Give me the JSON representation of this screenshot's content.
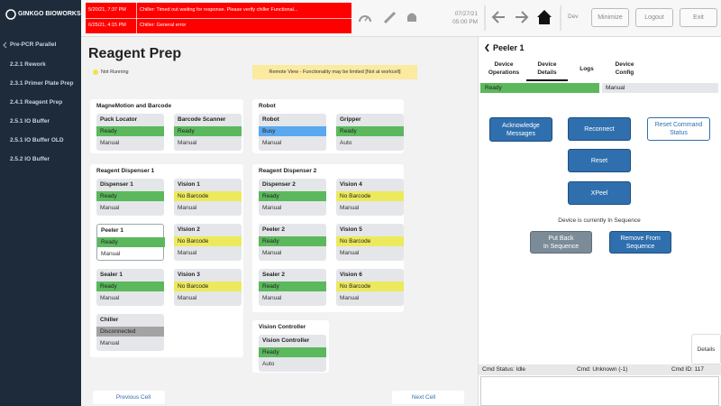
{
  "sidebar": {
    "logo": "GINKGO BIOWORKS",
    "back": "Pre-PCR Parallel",
    "items": [
      "2.2.1 Rework",
      "2.3.1 Primer Plate Prep",
      "2.4.1 Reagent Prep",
      "2.5.1 IO Buffer",
      "2.5.1 IO Buffer OLD",
      "2.5.2 IO Buffer"
    ]
  },
  "alarms": [
    {
      "time": "5/20/21, 7:37 PM",
      "message": "Chiller: Timed out waiting for response. Please verify chiller Functional..."
    },
    {
      "time": "6/25/21, 4:15 PM",
      "message": "Chiller: General error"
    }
  ],
  "clock": {
    "date": "07/27/21",
    "time": "05:00 PM"
  },
  "header": {
    "env": "Dev",
    "buttons": [
      "Minimize",
      "Logout",
      "Exit"
    ]
  },
  "page": {
    "title": "Reagent Prep",
    "legend": "Not Running",
    "legend_color": "#f0e24a",
    "banner": "Remote View - Functionality may be limited [Not at workcell]",
    "prev": "Previous Cell",
    "next": "Next Cell"
  },
  "panels": [
    {
      "title": "MagneMotion and Barcode",
      "cards": [
        {
          "name": "Puck Locator",
          "status": "Ready",
          "color": "#5cb85c",
          "mode": "Manual"
        },
        {
          "name": "Barcode Scanner",
          "status": "Ready",
          "color": "#5cb85c",
          "mode": "Manual"
        }
      ]
    },
    {
      "title": "Robot",
      "cards": [
        {
          "name": "Robot",
          "status": "Busy",
          "color": "#5aa8ee",
          "mode": "Manual"
        },
        {
          "name": "Gripper",
          "status": "Ready",
          "color": "#5cb85c",
          "mode": "Auto"
        }
      ]
    },
    {
      "title": "Reagent Dispenser 1",
      "cards": [
        {
          "name": "Dispenser 1",
          "status": "Ready",
          "color": "#5cb85c",
          "mode": "Manual"
        },
        {
          "name": "Vision 1",
          "status": "No Barcode",
          "color": "#ecea5c",
          "mode": "Manual"
        },
        {
          "name": "Peeler 1",
          "status": "Ready",
          "color": "#5cb85c",
          "mode": "Manual",
          "selected": true
        },
        {
          "name": "Vision 2",
          "status": "No Barcode",
          "color": "#ecea5c",
          "mode": "Manual"
        },
        {
          "name": "Sealer 1",
          "status": "Ready",
          "color": "#5cb85c",
          "mode": "Manual"
        },
        {
          "name": "Vision 3",
          "status": "No Barcode",
          "color": "#ecea5c",
          "mode": "Manual"
        },
        {
          "name": "Chiller",
          "status": "Disconnected",
          "color": "#a3a3a3",
          "mode": "Manual"
        }
      ]
    },
    {
      "title": "Reagent Dispenser 2",
      "cards": [
        {
          "name": "Dispenser 2",
          "status": "Ready",
          "color": "#5cb85c",
          "mode": "Manual"
        },
        {
          "name": "Vision 4",
          "status": "No Barcode",
          "color": "#ecea5c",
          "mode": "Manual"
        },
        {
          "name": "Peeler 2",
          "status": "Ready",
          "color": "#5cb85c",
          "mode": "Manual"
        },
        {
          "name": "Vision 5",
          "status": "No Barcode",
          "color": "#ecea5c",
          "mode": "Manual"
        },
        {
          "name": "Sealer 2",
          "status": "Ready",
          "color": "#5cb85c",
          "mode": "Manual"
        },
        {
          "name": "Vision 6",
          "status": "No Barcode",
          "color": "#ecea5c",
          "mode": "Manual"
        }
      ]
    },
    {
      "title": "Vision Controller",
      "cards": [
        {
          "name": "Vision Controller",
          "status": "Ready",
          "color": "#5cb85c",
          "mode": "Auto"
        }
      ]
    }
  ],
  "detail": {
    "title": "Peeler 1",
    "tabs": [
      {
        "lines": [
          "Device",
          "Operations"
        ]
      },
      {
        "lines": [
          "Device",
          "Details"
        ],
        "active": true
      },
      {
        "lines": [
          "Logs"
        ]
      },
      {
        "lines": [
          "Device",
          "Config"
        ]
      }
    ],
    "status": "Ready",
    "status_color": "#5cb85c",
    "mode": "Manual",
    "buttons": {
      "acknowledge": [
        "Acknowledge",
        "Messages"
      ],
      "reconnect": [
        "Reconnect"
      ],
      "reset_command": [
        "Reset Command",
        "Status"
      ],
      "reset": [
        "Reset"
      ],
      "xpeel": [
        "XPeel"
      ],
      "put_back": [
        "Put Back",
        "In Sequence"
      ],
      "remove": [
        "Remove From",
        "Sequence"
      ]
    },
    "sequence_note": "Device is currently In Sequence",
    "details_tab": "Details",
    "cmd_status": "Cmd Status: Idle",
    "cmd": "Cmd: Unknown (-1)",
    "cmd_id": "Cmd ID: 117"
  }
}
